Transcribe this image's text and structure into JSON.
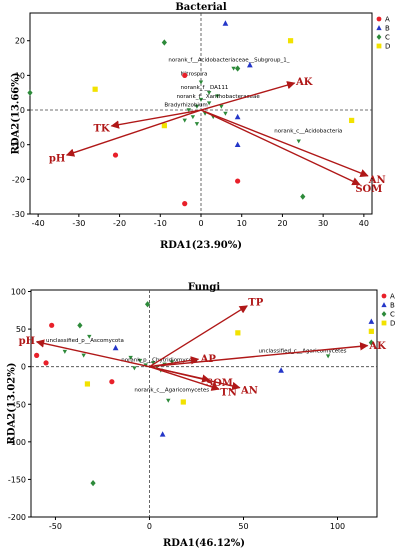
{
  "chart_data": [
    {
      "type": "scatter",
      "title": "Bacterial",
      "xlabel": "RDA1(23.90%)",
      "ylabel": "RDA2(13.66%)",
      "xlim": [
        -42,
        42
      ],
      "ylim": [
        -30,
        28
      ],
      "xticks": [
        "-40",
        "-30",
        "-20",
        "-10",
        "0",
        "10",
        "20",
        "30",
        "40"
      ],
      "xtick_values": [
        -40,
        -30,
        -20,
        -10,
        0,
        10,
        20,
        30,
        40
      ],
      "yticks": [
        "20",
        "10",
        "0",
        "-10",
        "-20",
        "-30"
      ],
      "ytick_values": [
        20,
        10,
        0,
        -10,
        -20,
        -30
      ],
      "legend": {
        "position": "top-right",
        "entries": [
          {
            "label": "A",
            "color": "#e8202a",
            "shape": "circle"
          },
          {
            "label": "B",
            "color": "#2436c8",
            "shape": "triangle"
          },
          {
            "label": "C",
            "color": "#2d8a3a",
            "shape": "diamond"
          },
          {
            "label": "D",
            "color": "#f2e200",
            "shape": "square"
          }
        ]
      },
      "samples": [
        {
          "group": "A",
          "x": -21,
          "y": -13
        },
        {
          "group": "A",
          "x": -4,
          "y": 10
        },
        {
          "group": "A",
          "x": 9,
          "y": -20.5
        },
        {
          "group": "A",
          "x": -4,
          "y": -27
        },
        {
          "group": "B",
          "x": 6,
          "y": 25
        },
        {
          "group": "B",
          "x": 12,
          "y": 13
        },
        {
          "group": "B",
          "x": 9,
          "y": -2
        },
        {
          "group": "B",
          "x": 9,
          "y": -10
        },
        {
          "group": "C",
          "x": -42,
          "y": 5
        },
        {
          "group": "C",
          "x": -9,
          "y": 19.5
        },
        {
          "group": "C",
          "x": 25,
          "y": -25
        },
        {
          "group": "C",
          "x": 9,
          "y": 12
        },
        {
          "group": "D",
          "x": 22,
          "y": 20
        },
        {
          "group": "D",
          "x": -26,
          "y": 6
        },
        {
          "group": "D",
          "x": 37,
          "y": -3
        },
        {
          "group": "D",
          "x": -9,
          "y": -4.5
        }
      ],
      "taxa_points": [
        {
          "x": 8,
          "y": 12
        },
        {
          "x": 0,
          "y": 8
        },
        {
          "x": 0,
          "y": 3
        },
        {
          "x": 2,
          "y": 2
        },
        {
          "x": 5,
          "y": 1
        },
        {
          "x": -2,
          "y": -2
        },
        {
          "x": -4,
          "y": -3
        },
        {
          "x": 24,
          "y": -9
        },
        {
          "x": 1,
          "y": -1
        },
        {
          "x": -1,
          "y": 1
        },
        {
          "x": 3,
          "y": -2
        },
        {
          "x": -3,
          "y": 0
        },
        {
          "x": 4,
          "y": 4
        },
        {
          "x": -1,
          "y": -4
        },
        {
          "x": 2,
          "y": 5
        },
        {
          "x": 6,
          "y": -1
        }
      ],
      "taxa_labels": [
        {
          "text": "norank_f__Acidobacteriaceae__Subgroup_1_",
          "x": -8,
          "y": 14
        },
        {
          "text": "Nitrospira",
          "x": -5,
          "y": 10
        },
        {
          "text": "norank_f__DA111",
          "x": -5,
          "y": 6
        },
        {
          "text": "norank_f__Xanthobacteraceae",
          "x": -6,
          "y": 3.5
        },
        {
          "text": "Bradyrhizobium",
          "x": -9,
          "y": 1
        },
        {
          "text": "norank_c__Acidobacteria",
          "x": 18,
          "y": -6.5
        }
      ],
      "vectors": [
        {
          "name": "AK",
          "x": 23,
          "y": 7.8
        },
        {
          "name": "TK",
          "x": -22,
          "y": -4.6
        },
        {
          "name": "pH",
          "x": -33,
          "y": -13
        },
        {
          "name": "AN",
          "x": 41,
          "y": -19
        },
        {
          "name": "SOM",
          "x": 39,
          "y": -21.5
        }
      ]
    },
    {
      "type": "scatter",
      "title": "Fungi",
      "xlabel": "RDA1(46.12%)",
      "ylabel": "RDA2(13.02%)",
      "xlim": [
        -63,
        121
      ],
      "ylim": [
        -200,
        102
      ],
      "xticks": [
        "-50",
        "0",
        "50",
        "100"
      ],
      "xtick_values": [
        -50,
        0,
        50,
        100
      ],
      "yticks": [
        "100",
        "50",
        "0",
        "-50",
        "-100",
        "-150",
        "-200"
      ],
      "ytick_values": [
        100,
        50,
        0,
        -50,
        -100,
        -150,
        -200
      ],
      "legend": {
        "position": "top-right",
        "entries": [
          {
            "label": "A",
            "color": "#e8202a",
            "shape": "circle"
          },
          {
            "label": "B",
            "color": "#2436c8",
            "shape": "triangle"
          },
          {
            "label": "C",
            "color": "#2d8a3a",
            "shape": "diamond"
          },
          {
            "label": "D",
            "color": "#f2e200",
            "shape": "square"
          }
        ]
      },
      "samples": [
        {
          "group": "A",
          "x": -52,
          "y": 55
        },
        {
          "group": "A",
          "x": -60,
          "y": 15
        },
        {
          "group": "A",
          "x": -55,
          "y": 5
        },
        {
          "group": "A",
          "x": -20,
          "y": -20
        },
        {
          "group": "B",
          "x": -18,
          "y": 25
        },
        {
          "group": "B",
          "x": 70,
          "y": -5
        },
        {
          "group": "B",
          "x": 7,
          "y": -90
        },
        {
          "group": "B",
          "x": 118,
          "y": 60
        },
        {
          "group": "C",
          "x": -1,
          "y": 83
        },
        {
          "group": "C",
          "x": -37,
          "y": 55
        },
        {
          "group": "C",
          "x": -30,
          "y": -155
        },
        {
          "group": "C",
          "x": 118,
          "y": 32
        },
        {
          "group": "D",
          "x": 47,
          "y": 45
        },
        {
          "group": "D",
          "x": 18,
          "y": -47
        },
        {
          "group": "D",
          "x": 118,
          "y": 47
        },
        {
          "group": "D",
          "x": -33,
          "y": -23
        }
      ],
      "taxa_points": [
        {
          "x": -32,
          "y": 40
        },
        {
          "x": -45,
          "y": 20
        },
        {
          "x": -35,
          "y": 15
        },
        {
          "x": -10,
          "y": 12
        },
        {
          "x": -5,
          "y": 8
        },
        {
          "x": 2,
          "y": 5
        },
        {
          "x": 8,
          "y": 3
        },
        {
          "x": 95,
          "y": 14
        },
        {
          "x": 10,
          "y": -45
        },
        {
          "x": 6,
          "y": -5
        },
        {
          "x": -2,
          "y": 2
        },
        {
          "x": 4,
          "y": 0
        },
        {
          "x": 12,
          "y": 6
        },
        {
          "x": -8,
          "y": -2
        }
      ],
      "taxa_labels": [
        {
          "text": "unclassified_p__Ascomycota",
          "x": -55,
          "y": 33
        },
        {
          "text": "norank_p__Chytridiomycota",
          "x": -15,
          "y": 7
        },
        {
          "text": "unclassified_c__Agaricomycetes",
          "x": 58,
          "y": 19
        },
        {
          "text": "norank_c__Agaricomycetes",
          "x": -8,
          "y": -33
        }
      ],
      "vectors": [
        {
          "name": "TP",
          "x": 52,
          "y": 81
        },
        {
          "name": "AP",
          "x": 26,
          "y": 10
        },
        {
          "name": "AK",
          "x": 116,
          "y": 28
        },
        {
          "name": "SOM",
          "x": 32,
          "y": -18
        },
        {
          "name": "AN",
          "x": 48,
          "y": -28
        },
        {
          "name": "TN",
          "x": 37,
          "y": -30
        },
        {
          "name": "pH",
          "x": -60,
          "y": 33
        }
      ]
    }
  ]
}
